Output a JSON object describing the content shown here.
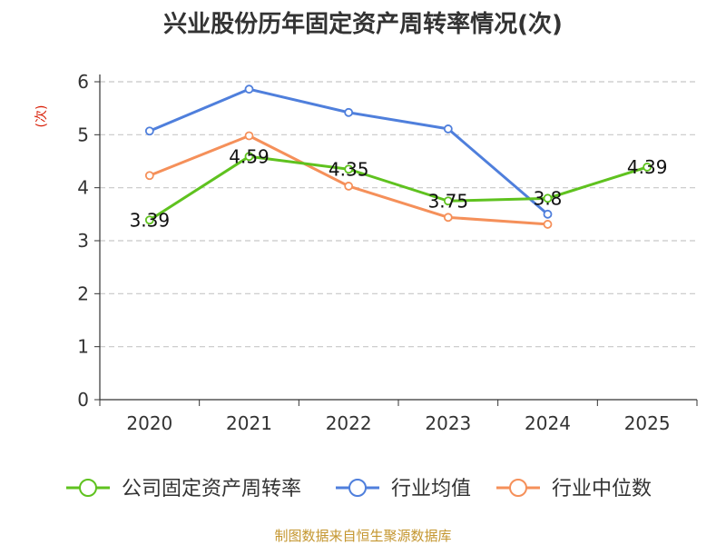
{
  "chart_data": {
    "type": "line",
    "title": "兴业股份历年固定资产周转率情况(次)",
    "ylabel": "(次)",
    "xlabel": "",
    "categories": [
      "2020",
      "2021",
      "2022",
      "2023",
      "2024",
      "2025"
    ],
    "ylim": [
      0,
      6
    ],
    "yticks": [
      "0",
      "1",
      "2",
      "3",
      "4",
      "5",
      "6"
    ],
    "grid": true,
    "legend_position": "bottom",
    "series": [
      {
        "name": "公司固定资产周转率",
        "color": "#5fc21f",
        "values": [
          3.39,
          4.59,
          4.35,
          3.75,
          3.8,
          4.39
        ],
        "labels": [
          "3.39",
          "4.59",
          "4.35",
          "3.75",
          "3.8",
          "4.39"
        ]
      },
      {
        "name": "行业均值",
        "color": "#4f7fdc",
        "values": [
          5.07,
          5.86,
          5.42,
          5.11,
          3.5,
          null
        ]
      },
      {
        "name": "行业中位数",
        "color": "#f5905a",
        "values": [
          4.23,
          4.98,
          4.03,
          3.44,
          3.31,
          null
        ]
      }
    ],
    "source": "制图数据来自恒生聚源数据库",
    "colors": {
      "title": "#333333",
      "ylabel": "#d81e06",
      "source": "#c4962f",
      "grid": "#c8c8c8",
      "axis": "#333333"
    }
  }
}
